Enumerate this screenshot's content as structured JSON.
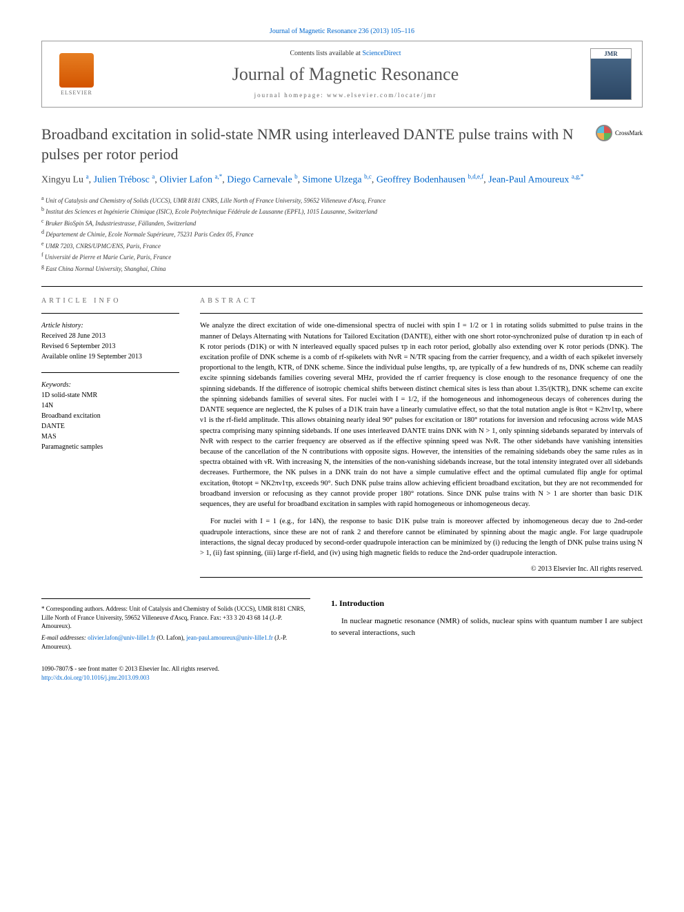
{
  "citation": "Journal of Magnetic Resonance 236 (2013) 105–116",
  "header": {
    "contents_prefix": "Contents lists available at ",
    "contents_link": "ScienceDirect",
    "journal_name": "Journal of Magnetic Resonance",
    "homepage_label": "journal homepage: www.elsevier.com/locate/jmr",
    "elsevier_label": "ELSEVIER",
    "cover_label": "JMR"
  },
  "crossmark_label": "CrossMark",
  "title": "Broadband excitation in solid-state NMR using interleaved DANTE pulse trains with N pulses per rotor period",
  "authors_html": "Xingyu Lu <sup>a</sup>, <span class='author-link'>Julien Trébosc</span> <sup>a</sup>, <span class='author-link'>Olivier Lafon</span> <sup>a,*</sup>, <span class='author-link'>Diego Carnevale</span> <sup>b</sup>, <span class='author-link'>Simone Ulzega</span> <sup>b,c</sup>, <span class='author-link'>Geoffrey Bodenhausen</span> <sup>b,d,e,f</sup>, <span class='author-link'>Jean-Paul Amoureux</span> <sup>a,g,*</sup>",
  "affiliations": [
    "a Unit of Catalysis and Chemistry of Solids (UCCS), UMR 8181 CNRS, Lille North of France University, 59652 Villeneuve d'Ascq, France",
    "b Institut des Sciences et Ingénierie Chimique (ISIC), Ecole Polytechnique Fédérale de Lausanne (EPFL), 1015 Lausanne, Switzerland",
    "c Bruker BioSpin SA, Industriestrasse, Fällanden, Switzerland",
    "d Département de Chimie, Ecole Normale Supérieure, 75231 Paris Cedex 05, France",
    "e UMR 7203, CNRS/UPMC/ENS, Paris, France",
    "f Université de Pierre et Marie Curie, Paris, France",
    "g East China Normal University, Shanghai, China"
  ],
  "info": {
    "heading": "ARTICLE INFO",
    "history_label": "Article history:",
    "history": [
      "Received 28 June 2013",
      "Revised 6 September 2013",
      "Available online 19 September 2013"
    ],
    "keywords_label": "Keywords:",
    "keywords": [
      "1D solid-state NMR",
      "14N",
      "Broadband excitation",
      "DANTE",
      "MAS",
      "Paramagnetic samples"
    ]
  },
  "abstract": {
    "heading": "ABSTRACT",
    "p1": "We analyze the direct excitation of wide one-dimensional spectra of nuclei with spin I = 1/2 or 1 in rotating solids submitted to pulse trains in the manner of Delays Alternating with Nutations for Tailored Excitation (DANTE), either with one short rotor-synchronized pulse of duration τp in each of K rotor periods (D1K) or with N interleaved equally spaced pulses τp in each rotor period, globally also extending over K rotor periods (DNK). The excitation profile of DNK scheme is a comb of rf-spikelets with NνR = N/TR spacing from the carrier frequency, and a width of each spikelet inversely proportional to the length, KTR, of DNK scheme. Since the individual pulse lengths, τp, are typically of a few hundreds of ns, DNK scheme can readily excite spinning sidebands families covering several MHz, provided the rf carrier frequency is close enough to the resonance frequency of one the spinning sidebands. If the difference of isotropic chemical shifts between distinct chemical sites is less than about 1.35/(KTR), DNK scheme can excite the spinning sidebands families of several sites. For nuclei with I = 1/2, if the homogeneous and inhomogeneous decays of coherences during the DANTE sequence are neglected, the K pulses of a D1K train have a linearly cumulative effect, so that the total nutation angle is θtot = K2πν1τp, where ν1 is the rf-field amplitude. This allows obtaining nearly ideal 90° pulses for excitation or 180° rotations for inversion and refocusing across wide MAS spectra comprising many spinning sidebands. If one uses interleaved DANTE trains DNK with N > 1, only spinning sidebands separated by intervals of NνR with respect to the carrier frequency are observed as if the effective spinning speed was NνR. The other sidebands have vanishing intensities because of the cancellation of the N contributions with opposite signs. However, the intensities of the remaining sidebands obey the same rules as in spectra obtained with νR. With increasing N, the intensities of the non-vanishing sidebands increase, but the total intensity integrated over all sidebands decreases. Furthermore, the NK pulses in a DNK train do not have a simple cumulative effect and the optimal cumulated flip angle for optimal excitation, θtotopt = NK2πν1τp, exceeds 90°. Such DNK pulse trains allow achieving efficient broadband excitation, but they are not recommended for broadband inversion or refocusing as they cannot provide proper 180° rotations. Since DNK pulse trains with N > 1 are shorter than basic D1K sequences, they are useful for broadband excitation in samples with rapid homogeneous or inhomogeneous decay.",
    "p2": "For nuclei with I = 1 (e.g., for 14N), the response to basic D1K pulse train is moreover affected by inhomogeneous decay due to 2nd-order quadrupole interactions, since these are not of rank 2 and therefore cannot be eliminated by spinning about the magic angle. For large quadrupole interactions, the signal decay produced by second-order quadrupole interaction can be minimized by (i) reducing the length of DNK pulse trains using N > 1, (ii) fast spinning, (iii) large rf-field, and (iv) using high magnetic fields to reduce the 2nd-order quadrupole interaction.",
    "copyright": "© 2013 Elsevier Inc. All rights reserved."
  },
  "footnote": {
    "corr_label": "* Corresponding authors. Address: Unit of Catalysis and Chemistry of Solids (UCCS), UMR 8181 CNRS, Lille North of France University, 59652 Villeneuve d'Ascq, France. Fax: +33 3 20 43 68 14 (J.-P. Amoureux).",
    "email_label": "E-mail addresses: ",
    "email1": "olivier.lafon@univ-lille1.fr",
    "email1_who": " (O. Lafon), ",
    "email2": "jean-paul.amoureux@univ-lille1.fr",
    "email2_who": " (J.-P. Amoureux)."
  },
  "intro": {
    "heading": "1. Introduction",
    "text": "In nuclear magnetic resonance (NMR) of solids, nuclear spins with quantum number I are subject to several interactions, such"
  },
  "footer": {
    "line1": "1090-7807/$ - see front matter © 2013 Elsevier Inc. All rights reserved.",
    "doi": "http://dx.doi.org/10.1016/j.jmr.2013.09.003"
  },
  "colors": {
    "link": "#0066cc",
    "text": "#000000",
    "heading_gray": "#666666"
  }
}
